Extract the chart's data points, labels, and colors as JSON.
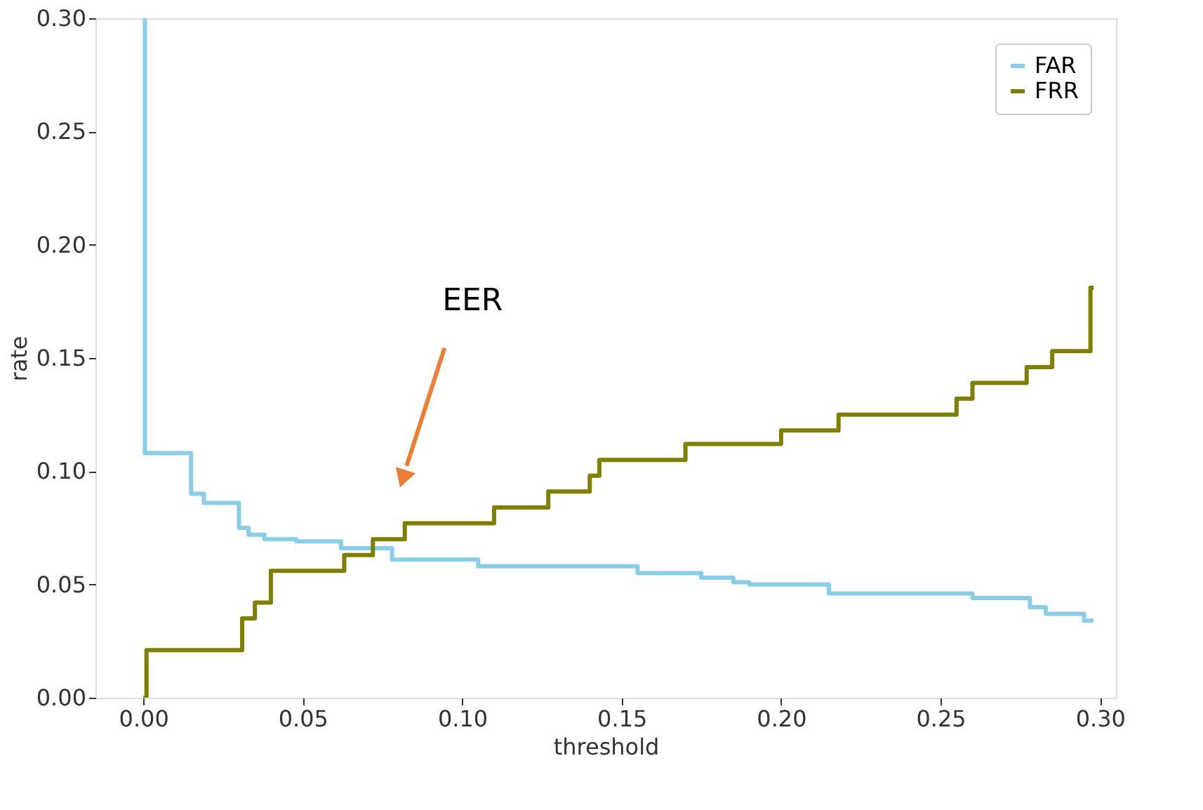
{
  "chart_data": {
    "type": "step",
    "xlabel": "threshold",
    "ylabel": "rate",
    "xlim": [
      -0.015,
      0.305
    ],
    "ylim": [
      0,
      0.3
    ],
    "xticks": [
      {
        "value": 0,
        "label": "0.00"
      },
      {
        "value": 0.05,
        "label": "0.05"
      },
      {
        "value": 0.1,
        "label": "0.10"
      },
      {
        "value": 0.15,
        "label": "0.15"
      },
      {
        "value": 0.2,
        "label": "0.20"
      },
      {
        "value": 0.25,
        "label": "0.25"
      },
      {
        "value": 0.3,
        "label": "0.30"
      }
    ],
    "yticks": [
      {
        "value": 0,
        "label": "0.00"
      },
      {
        "value": 0.05,
        "label": "0.05"
      },
      {
        "value": 0.1,
        "label": "0.10"
      },
      {
        "value": 0.15,
        "label": "0.15"
      },
      {
        "value": 0.2,
        "label": "0.20"
      },
      {
        "value": 0.25,
        "label": "0.25"
      },
      {
        "value": 0.3,
        "label": "0.30"
      }
    ],
    "series": [
      {
        "name": "FAR",
        "color": "#87ceeb",
        "x": [
          0,
          0.0005,
          0.015,
          0.019,
          0.03,
          0.033,
          0.038,
          0.048,
          0.062,
          0.07,
          0.078,
          0.105,
          0.155,
          0.175,
          0.185,
          0.19,
          0.215,
          0.26,
          0.278,
          0.283,
          0.295,
          0.298
        ],
        "values": [
          0.3,
          0.108,
          0.09,
          0.086,
          0.075,
          0.072,
          0.07,
          0.069,
          0.066,
          0.066,
          0.061,
          0.058,
          0.055,
          0.053,
          0.051,
          0.05,
          0.046,
          0.044,
          0.04,
          0.037,
          0.034,
          0.034
        ]
      },
      {
        "name": "FRR",
        "color": "#808000",
        "x": [
          0,
          0.001,
          0.031,
          0.035,
          0.04,
          0.063,
          0.072,
          0.082,
          0.11,
          0.127,
          0.14,
          0.143,
          0.17,
          0.2,
          0.218,
          0.255,
          0.26,
          0.277,
          0.285,
          0.297,
          0.298
        ],
        "values": [
          0,
          0.021,
          0.035,
          0.042,
          0.056,
          0.063,
          0.07,
          0.077,
          0.084,
          0.091,
          0.098,
          0.105,
          0.112,
          0.118,
          0.125,
          0.132,
          0.139,
          0.146,
          0.153,
          0.181,
          0.181
        ]
      }
    ],
    "annotations": [
      "EER"
    ],
    "legend": "top right",
    "grid": false,
    "line_style": "solid"
  }
}
